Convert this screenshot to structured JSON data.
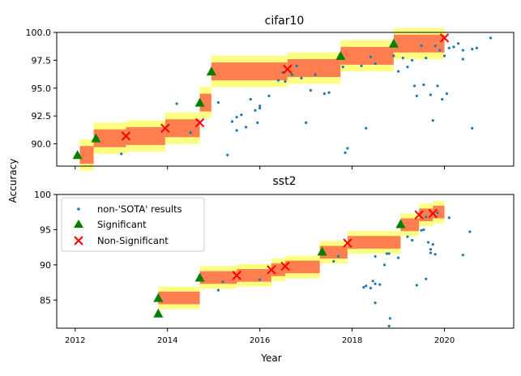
{
  "colors": {
    "sota_band_inner": "#ff7f50",
    "sota_band_outer": "#ffff80",
    "significant": "#008000",
    "non_significant": "#ff0000",
    "non_sota": "#1f77b4"
  },
  "chart_data": [
    {
      "type": "scatter",
      "title": "cifar10",
      "xlabel": "",
      "ylabel": "",
      "xlim": [
        2011.6,
        2021.5
      ],
      "ylim": [
        88.0,
        100.0
      ],
      "yticks": [
        90.0,
        92.5,
        95.0,
        97.5,
        100.0
      ],
      "ytick_labels": [
        "90.0",
        "92.5",
        "95.0",
        "97.5",
        "100.0"
      ],
      "sota_steps": [
        {
          "x0": 2012.1,
          "x1": 2012.4,
          "y": 89.0
        },
        {
          "x0": 2012.4,
          "x1": 2013.1,
          "y": 90.5
        },
        {
          "x0": 2013.1,
          "x1": 2013.95,
          "y": 90.7
        },
        {
          "x0": 2013.95,
          "x1": 2014.7,
          "y": 91.4
        },
        {
          "x0": 2014.7,
          "x1": 2014.95,
          "y": 93.7
        },
        {
          "x0": 2014.95,
          "x1": 2016.6,
          "y": 96.5
        },
        {
          "x0": 2016.6,
          "x1": 2017.75,
          "y": 96.8
        },
        {
          "x0": 2017.75,
          "x1": 2018.9,
          "y": 97.9
        },
        {
          "x0": 2018.9,
          "x1": 2020.0,
          "y": 99.0
        }
      ],
      "significant": [
        [
          2012.05,
          89.0
        ],
        [
          2012.45,
          90.5
        ],
        [
          2014.7,
          93.7
        ],
        [
          2014.95,
          96.5
        ],
        [
          2017.75,
          97.9
        ],
        [
          2018.9,
          99.0
        ]
      ],
      "non_significant": [
        [
          2013.1,
          90.7
        ],
        [
          2013.95,
          91.4
        ],
        [
          2014.7,
          91.9
        ],
        [
          2016.6,
          96.7
        ],
        [
          2020.0,
          99.5
        ]
      ],
      "non_sota": [
        [
          2013.0,
          89.1
        ],
        [
          2014.2,
          93.6
        ],
        [
          2014.5,
          91.0
        ],
        [
          2015.1,
          93.7
        ],
        [
          2015.3,
          89.0
        ],
        [
          2015.4,
          92.0
        ],
        [
          2015.5,
          91.2
        ],
        [
          2015.5,
          92.4
        ],
        [
          2015.6,
          92.6
        ],
        [
          2015.7,
          91.5
        ],
        [
          2015.8,
          94.0
        ],
        [
          2015.9,
          93.0
        ],
        [
          2015.95,
          91.9
        ],
        [
          2016.0,
          93.2
        ],
        [
          2016.0,
          93.4
        ],
        [
          2016.2,
          94.3
        ],
        [
          2016.4,
          95.7
        ],
        [
          2016.5,
          96.4
        ],
        [
          2016.55,
          95.6
        ],
        [
          2016.7,
          96.2
        ],
        [
          2016.8,
          97.0
        ],
        [
          2016.9,
          95.9
        ],
        [
          2017.0,
          91.9
        ],
        [
          2017.1,
          94.8
        ],
        [
          2017.2,
          96.2
        ],
        [
          2017.4,
          94.5
        ],
        [
          2017.5,
          94.6
        ],
        [
          2017.8,
          96.9
        ],
        [
          2017.85,
          89.2
        ],
        [
          2017.9,
          89.6
        ],
        [
          2018.2,
          97.0
        ],
        [
          2018.3,
          91.4
        ],
        [
          2018.4,
          97.8
        ],
        [
          2018.5,
          97.2
        ],
        [
          2018.9,
          97.9
        ],
        [
          2019.0,
          96.5
        ],
        [
          2019.1,
          97.7
        ],
        [
          2019.2,
          96.9
        ],
        [
          2019.3,
          97.5
        ],
        [
          2019.35,
          95.2
        ],
        [
          2019.4,
          94.3
        ],
        [
          2019.5,
          98.8
        ],
        [
          2019.55,
          95.3
        ],
        [
          2019.6,
          97.7
        ],
        [
          2019.7,
          94.4
        ],
        [
          2019.75,
          92.1
        ],
        [
          2019.8,
          98.8
        ],
        [
          2019.85,
          95.2
        ],
        [
          2019.9,
          98.4
        ],
        [
          2019.95,
          94.0
        ],
        [
          2020.0,
          97.9
        ],
        [
          2020.05,
          94.5
        ],
        [
          2020.1,
          98.6
        ],
        [
          2020.2,
          98.7
        ],
        [
          2020.3,
          99.0
        ],
        [
          2020.4,
          98.4
        ],
        [
          2020.4,
          97.6
        ],
        [
          2020.6,
          98.5
        ],
        [
          2020.6,
          91.4
        ],
        [
          2020.7,
          98.6
        ],
        [
          2021.0,
          99.5
        ]
      ],
      "xticks": [
        2012,
        2014,
        2016,
        2018,
        2020
      ],
      "show_x_tick_labels": false
    },
    {
      "type": "scatter",
      "title": "sst2",
      "xlabel": "Year",
      "ylabel": "Accuracy",
      "xlim": [
        2011.6,
        2021.5
      ],
      "ylim": [
        81.0,
        100.0
      ],
      "yticks": [
        85,
        90,
        95,
        100
      ],
      "ytick_labels": [
        "85",
        "90",
        "95",
        "100"
      ],
      "xticks": [
        2012,
        2014,
        2016,
        2018,
        2020
      ],
      "xtick_labels": [
        "2012",
        "2014",
        "2016",
        "2018",
        "2020"
      ],
      "sota_steps": [
        {
          "x0": 2013.8,
          "x1": 2014.7,
          "y": 85.3
        },
        {
          "x0": 2014.7,
          "x1": 2015.5,
          "y": 88.2
        },
        {
          "x0": 2015.5,
          "x1": 2016.25,
          "y": 88.5
        },
        {
          "x0": 2016.25,
          "x1": 2016.55,
          "y": 89.3
        },
        {
          "x0": 2016.55,
          "x1": 2017.3,
          "y": 89.7
        },
        {
          "x0": 2017.3,
          "x1": 2017.9,
          "y": 91.8
        },
        {
          "x0": 2017.9,
          "x1": 2019.05,
          "y": 93.2
        },
        {
          "x0": 2019.05,
          "x1": 2019.45,
          "y": 95.7
        },
        {
          "x0": 2019.45,
          "x1": 2019.75,
          "y": 97.1
        },
        {
          "x0": 2019.75,
          "x1": 2020.0,
          "y": 97.5
        }
      ],
      "significant": [
        [
          2013.8,
          85.3
        ],
        [
          2013.8,
          83.1
        ],
        [
          2014.7,
          88.2
        ],
        [
          2017.35,
          91.9
        ],
        [
          2019.05,
          95.8
        ]
      ],
      "non_significant": [
        [
          2015.5,
          88.5
        ],
        [
          2016.25,
          89.3
        ],
        [
          2016.55,
          89.8
        ],
        [
          2017.9,
          93.1
        ],
        [
          2019.45,
          97.1
        ],
        [
          2019.75,
          97.3
        ]
      ],
      "non_sota": [
        [
          2015.1,
          86.4
        ],
        [
          2015.2,
          87.6
        ],
        [
          2016.0,
          87.9
        ],
        [
          2017.6,
          90.5
        ],
        [
          2017.7,
          91.2
        ],
        [
          2018.25,
          86.8
        ],
        [
          2018.3,
          87.0
        ],
        [
          2018.4,
          86.7
        ],
        [
          2018.45,
          87.7
        ],
        [
          2018.5,
          87.3
        ],
        [
          2018.5,
          84.6
        ],
        [
          2018.5,
          91.2
        ],
        [
          2018.6,
          87.2
        ],
        [
          2018.7,
          90.0
        ],
        [
          2018.75,
          91.6
        ],
        [
          2018.8,
          91.6
        ],
        [
          2018.8,
          81.3
        ],
        [
          2018.82,
          82.4
        ],
        [
          2019.0,
          91.0
        ],
        [
          2019.2,
          94.0
        ],
        [
          2019.3,
          93.5
        ],
        [
          2019.4,
          87.1
        ],
        [
          2019.5,
          94.9
        ],
        [
          2019.55,
          95.0
        ],
        [
          2019.6,
          88.0
        ],
        [
          2019.6,
          96.8
        ],
        [
          2019.65,
          93.2
        ],
        [
          2019.7,
          92.2
        ],
        [
          2019.7,
          91.7
        ],
        [
          2019.75,
          92.9
        ],
        [
          2019.8,
          91.5
        ],
        [
          2019.85,
          97.4
        ],
        [
          2020.1,
          96.7
        ],
        [
          2020.4,
          91.4
        ],
        [
          2020.55,
          94.7
        ]
      ]
    }
  ],
  "legend": {
    "placement": "upper-left",
    "entries": [
      {
        "marker": "dot",
        "label": "non-'SOTA' results"
      },
      {
        "marker": "triangle",
        "label": "Significant"
      },
      {
        "marker": "cross",
        "label": "Non-Significant"
      }
    ]
  },
  "band_half_widths": {
    "outer": 1.4,
    "inner": 0.8
  },
  "sst2_band_half_widths": {
    "outer": 1.6,
    "inner": 0.9
  }
}
